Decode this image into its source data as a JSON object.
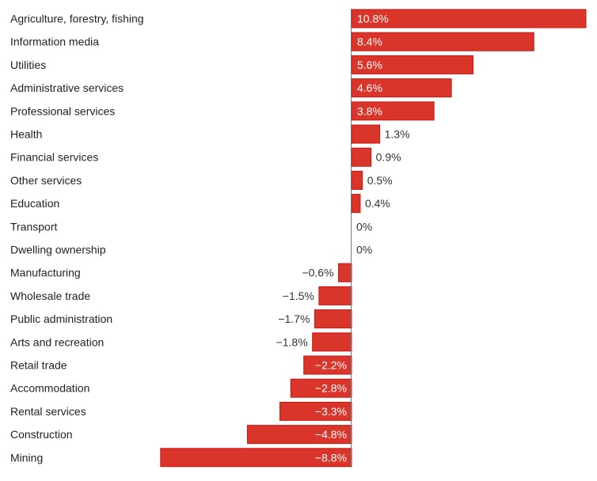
{
  "chart_data": {
    "type": "bar",
    "orientation": "horizontal",
    "categories": [
      "Agriculture, forestry, fishing",
      "Information media",
      "Utilities",
      "Administrative services",
      "Professional services",
      "Health",
      "Financial services",
      "Other services",
      "Education",
      "Transport",
      "Dwelling ownership",
      "Manufacturing",
      "Wholesale trade",
      "Public administration",
      "Arts and recreation",
      "Retail trade",
      "Accommodation",
      "Rental services",
      "Construction",
      "Mining"
    ],
    "values": [
      10.8,
      8.4,
      5.6,
      4.6,
      3.8,
      1.3,
      0.9,
      0.5,
      0.4,
      0,
      0,
      -0.6,
      -1.5,
      -1.7,
      -1.8,
      -2.2,
      -2.8,
      -3.3,
      -4.8,
      -8.8
    ],
    "data_labels": [
      "10.8%",
      "8.4%",
      "5.6%",
      "4.6%",
      "3.8%",
      "1.3%",
      "0.9%",
      "0.5%",
      "0.4%",
      "0%",
      "0%",
      "−0.6%",
      "−1.5%",
      "−1.7%",
      "−1.8%",
      "−2.2%",
      "−2.8%",
      "−3.3%",
      "−4.8%",
      "−8.8%"
    ],
    "xlim": [
      -8.8,
      10.8
    ],
    "grid": false,
    "bar_color": "#d9352b",
    "bar_border_color": "#c4170f"
  }
}
